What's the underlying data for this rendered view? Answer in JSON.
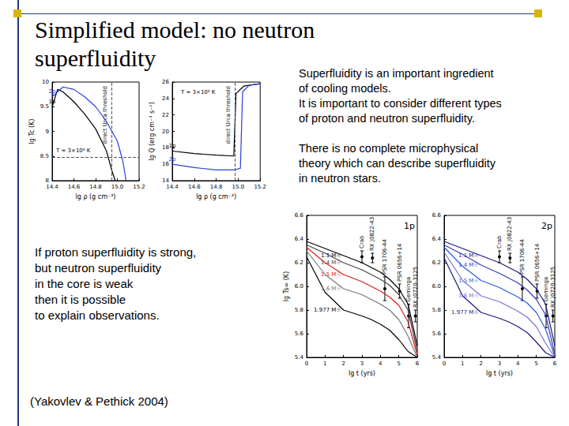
{
  "slide": {
    "title": [
      "Simplified model: no neutron",
      "superfluidity"
    ],
    "notes": [
      [
        "Superfluidity is an important ingredient",
        "of cooling models.",
        "It is important to consider different types",
        "of proton and neutron superfluidity."
      ],
      [
        "There is no complete microphysical",
        "theory which can describe superfluidity",
        "in neutron stars."
      ]
    ],
    "conclusion": [
      "If proton superfluidity is strong,",
      "but neutron superfluidity",
      "in the core is weak",
      "then it is possible",
      "to explain observations."
    ],
    "citation": "(Yakovlev & Pethick 2004)"
  },
  "chart_data": [
    {
      "type": "line",
      "xlabel": "lg ρ (g cm⁻³)",
      "ylabel": "lg Tc (K)",
      "xlim": [
        14.4,
        15.2
      ],
      "ylim": [
        8,
        10
      ],
      "xticks": [
        14.4,
        14.6,
        14.8,
        {
          "value": 15,
          "label": "15.0"
        },
        15.2
      ],
      "yticks": [
        8,
        8.5,
        9,
        9.5,
        10
      ],
      "series": [
        {
          "name": "1p",
          "color": "#000000",
          "x": [
            14.4,
            14.45,
            14.5,
            14.6,
            14.7,
            14.8,
            14.9,
            14.95,
            14.98
          ],
          "values": [
            9.5,
            9.85,
            9.8,
            9.6,
            9.35,
            9.05,
            8.6,
            8.2,
            8.0
          ]
        },
        {
          "name": "2p",
          "color": "#2b3fd6",
          "x": [
            14.4,
            14.5,
            14.6,
            14.7,
            14.8,
            14.9,
            15.0,
            15.05,
            15.08
          ],
          "values": [
            9.7,
            9.9,
            9.85,
            9.7,
            9.5,
            9.2,
            8.8,
            8.4,
            8.0
          ]
        }
      ],
      "hlines": [
        {
          "y": 8.48,
          "label": "T = 3×10⁸ K"
        }
      ],
      "vlines": [
        {
          "x": 14.95,
          "label": "direct Urca threshold"
        }
      ]
    },
    {
      "type": "line",
      "xlabel": "lg ρ (g cm⁻³)",
      "ylabel": "lg Q (erg cm⁻³ s⁻¹)",
      "xlim": [
        14.4,
        15.2
      ],
      "ylim": [
        14,
        26
      ],
      "xticks": [
        14.4,
        14.6,
        14.8,
        {
          "value": 15,
          "label": "15.0"
        },
        15.2
      ],
      "yticks": [
        14,
        16,
        18,
        20,
        22,
        24,
        26
      ],
      "note": "T = 3×10⁸ K",
      "series": [
        {
          "name": "1p",
          "color": "#000000",
          "x": [
            14.4,
            14.6,
            14.8,
            14.96,
            14.98,
            15.05,
            15.2
          ],
          "values": [
            17.6,
            17.3,
            17.1,
            17.0,
            24.6,
            25.5,
            25.8
          ]
        },
        {
          "name": "2p",
          "color": "#2b3fd6",
          "x": [
            14.4,
            14.6,
            14.8,
            14.96,
            15.02,
            15.04,
            15.1,
            15.2
          ],
          "values": [
            16.0,
            15.6,
            15.3,
            15.3,
            15.5,
            24.8,
            25.6,
            25.8
          ]
        }
      ],
      "vlines": [
        {
          "x": 14.97,
          "label": "direct Urca threshold"
        }
      ]
    },
    {
      "type": "line",
      "title": "1p",
      "xlabel": "lg t (yrs)",
      "ylabel": "lg Ts∞ (K)",
      "xlim": [
        0,
        6
      ],
      "ylim": [
        5.4,
        6.6
      ],
      "xticks": [
        0,
        1,
        2,
        3,
        4,
        5,
        6
      ],
      "yticks": [
        5.4,
        5.6,
        5.8,
        {
          "value": 6,
          "label": "6.0"
        },
        6.2,
        6.4,
        6.6
      ],
      "series": [
        {
          "name": "1.1 M☉",
          "color": "#000000",
          "x": [
            0,
            1,
            2,
            3,
            3.5,
            4,
            4.5,
            5,
            5.5,
            6
          ],
          "values": [
            6.38,
            6.32,
            6.26,
            6.2,
            6.16,
            6.12,
            6.06,
            5.98,
            5.85,
            5.5
          ]
        },
        {
          "name": "1.4 M☉",
          "color": "#444444",
          "x": [
            0,
            1,
            2,
            3,
            3.5,
            4,
            4.5,
            5,
            5.5,
            6
          ],
          "values": [
            6.35,
            6.28,
            6.2,
            6.14,
            6.1,
            6.06,
            6.01,
            5.93,
            5.8,
            5.45
          ]
        },
        {
          "name": "1.5 M☉",
          "color": "#d62020",
          "x": [
            0,
            1,
            2,
            3,
            3.5,
            4,
            4.5,
            5,
            5.5,
            6
          ],
          "values": [
            6.33,
            6.2,
            6.1,
            6.04,
            6.0,
            5.96,
            5.91,
            5.84,
            5.7,
            5.42
          ]
        },
        {
          "name": "1.6 M☉",
          "color": "#777777",
          "x": [
            0,
            1,
            2,
            3,
            3.5,
            4,
            4.5,
            5,
            5.5,
            6
          ],
          "values": [
            6.3,
            6.1,
            5.98,
            5.93,
            5.89,
            5.85,
            5.8,
            5.72,
            5.58,
            5.4
          ]
        },
        {
          "name": "1.977 M☉",
          "color": "#000000",
          "x": [
            0,
            1,
            2,
            3,
            3.5,
            4,
            4.5,
            5,
            5.5,
            6
          ],
          "values": [
            6.25,
            5.95,
            5.8,
            5.75,
            5.72,
            5.68,
            5.63,
            5.55,
            5.45,
            5.4
          ]
        }
      ],
      "observations": [
        {
          "name": "Crab",
          "x": 3.0,
          "y": 6.25,
          "y_low": 6.2,
          "y_high": 6.3
        },
        {
          "name": "RX J0822-43",
          "x": 3.57,
          "y": 6.24,
          "y_low": 6.2,
          "y_high": 6.28
        },
        {
          "name": "PSR 1706-44",
          "x": 4.24,
          "y": 5.98,
          "y_low": 5.88,
          "y_high": 6.08
        },
        {
          "name": "PSR 0656+14",
          "x": 5.04,
          "y": 5.96,
          "y_low": 5.9,
          "y_high": 6.02
        },
        {
          "name": "Geminga",
          "x": 5.53,
          "y": 5.75,
          "y_low": 5.65,
          "y_high": 5.85
        },
        {
          "name": "RX J0720-3125",
          "x": 5.9,
          "y": 5.75,
          "y_low": 5.7,
          "y_high": 5.8
        }
      ]
    },
    {
      "type": "line",
      "title": "2p",
      "xlabel": "lg t (yrs)",
      "xlim": [
        0,
        6
      ],
      "ylim": [
        5.4,
        6.6
      ],
      "xticks": [
        0,
        1,
        2,
        3,
        4,
        5,
        6
      ],
      "yticks": [
        5.4,
        5.6,
        5.8,
        {
          "value": 6,
          "label": "6.0"
        },
        6.2,
        6.4,
        6.6
      ],
      "series": [
        {
          "name": "1.1 M☉",
          "color": "#1a1a80",
          "x": [
            0,
            1,
            2,
            3,
            3.5,
            4,
            4.5,
            5,
            5.5,
            6
          ],
          "values": [
            6.38,
            6.32,
            6.26,
            6.2,
            6.16,
            6.12,
            6.06,
            5.98,
            5.85,
            5.5
          ]
        },
        {
          "name": "1.4 M☉",
          "color": "#3a3ac0",
          "x": [
            0,
            1,
            2,
            3,
            3.5,
            4,
            4.5,
            5,
            5.5,
            6
          ],
          "values": [
            6.35,
            6.27,
            6.18,
            6.11,
            6.07,
            6.03,
            5.97,
            5.89,
            5.76,
            5.43
          ]
        },
        {
          "name": "1.5 M☉",
          "color": "#2a5bd7",
          "x": [
            0,
            1,
            2,
            3,
            3.5,
            4,
            4.5,
            5,
            5.5,
            6
          ],
          "values": [
            6.33,
            6.17,
            6.05,
            5.99,
            5.95,
            5.91,
            5.86,
            5.78,
            5.64,
            5.41
          ]
        },
        {
          "name": "1.6 M☉",
          "color": "#7a6fd0",
          "x": [
            0,
            1,
            2,
            3,
            3.5,
            4,
            4.5,
            5,
            5.5,
            6
          ],
          "values": [
            6.29,
            6.05,
            5.92,
            5.87,
            5.83,
            5.79,
            5.74,
            5.66,
            5.52,
            5.4
          ]
        },
        {
          "name": "1.977 M☉",
          "color": "#1a1a80",
          "x": [
            0,
            1,
            2,
            3,
            3.5,
            4,
            4.5,
            5,
            5.5,
            6
          ],
          "values": [
            6.24,
            5.92,
            5.78,
            5.73,
            5.7,
            5.66,
            5.61,
            5.53,
            5.44,
            5.4
          ]
        }
      ],
      "observations": [
        {
          "name": "Crab",
          "x": 3.0,
          "y": 6.25,
          "y_low": 6.2,
          "y_high": 6.3
        },
        {
          "name": "RX J0822-43",
          "x": 3.57,
          "y": 6.24,
          "y_low": 6.2,
          "y_high": 6.28
        },
        {
          "name": "PSR 1706-44",
          "x": 4.24,
          "y": 5.98,
          "y_low": 5.88,
          "y_high": 6.08
        },
        {
          "name": "PSR 0656+14",
          "x": 5.04,
          "y": 5.96,
          "y_low": 5.9,
          "y_high": 6.02
        },
        {
          "name": "Geminga",
          "x": 5.53,
          "y": 5.75,
          "y_low": 5.65,
          "y_high": 5.85
        },
        {
          "name": "RX J0720-3125",
          "x": 5.9,
          "y": 5.75,
          "y_low": 5.7,
          "y_high": 5.8
        }
      ]
    }
  ]
}
